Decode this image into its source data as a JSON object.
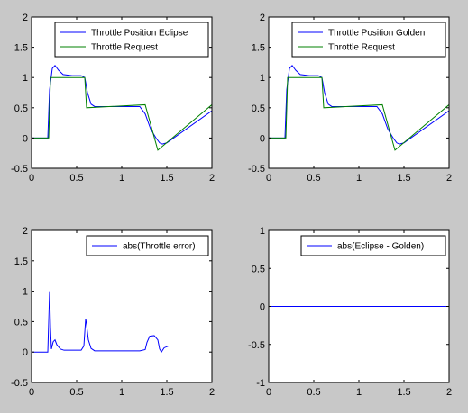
{
  "chart_data": [
    {
      "type": "line",
      "xlim": [
        0,
        2
      ],
      "ylim": [
        -0.5,
        2
      ],
      "xticks": [
        0,
        0.5,
        1,
        1.5,
        2
      ],
      "xtick_labels": [
        "0",
        "0.5",
        "1",
        "1.5",
        "2"
      ],
      "yticks": [
        -0.5,
        0,
        0.5,
        1,
        1.5,
        2
      ],
      "ytick_labels": [
        "-0.5",
        "0",
        "0.5",
        "1",
        "1.5",
        "2"
      ],
      "grid": false,
      "legend_position": "top-right",
      "series": [
        {
          "name": "Throttle Position Eclipse",
          "color": "#0000ff",
          "x": [
            0,
            0.18,
            0.2,
            0.23,
            0.26,
            0.3,
            0.35,
            0.45,
            0.55,
            0.59,
            0.62,
            0.66,
            0.7,
            0.8,
            1.0,
            1.2,
            1.26,
            1.32,
            1.38,
            1.42,
            1.45,
            1.5,
            2.0
          ],
          "y": [
            0,
            0,
            0.8,
            1.15,
            1.2,
            1.12,
            1.05,
            1.03,
            1.03,
            1.0,
            0.75,
            0.56,
            0.52,
            0.52,
            0.52,
            0.52,
            0.4,
            0.15,
            0.0,
            -0.08,
            -0.1,
            -0.08,
            0.45
          ]
        },
        {
          "name": "Throttle Request",
          "color": "#008000",
          "x": [
            0,
            0.19,
            0.21,
            0.59,
            0.61,
            1.26,
            1.4,
            2.0
          ],
          "y": [
            0,
            0,
            1.0,
            1.0,
            0.5,
            0.55,
            -0.2,
            0.55
          ]
        }
      ]
    },
    {
      "type": "line",
      "xlim": [
        0,
        2
      ],
      "ylim": [
        -0.5,
        2
      ],
      "xticks": [
        0,
        0.5,
        1,
        1.5,
        2
      ],
      "xtick_labels": [
        "0",
        "0.5",
        "1",
        "1.5",
        "2"
      ],
      "yticks": [
        -0.5,
        0,
        0.5,
        1,
        1.5,
        2
      ],
      "ytick_labels": [
        "-0.5",
        "0",
        "0.5",
        "1",
        "1.5",
        "2"
      ],
      "grid": false,
      "legend_position": "top-right",
      "series": [
        {
          "name": "Throttle Position Golden",
          "color": "#0000ff",
          "x": [
            0,
            0.18,
            0.2,
            0.23,
            0.26,
            0.3,
            0.35,
            0.45,
            0.55,
            0.59,
            0.62,
            0.66,
            0.7,
            0.8,
            1.0,
            1.2,
            1.26,
            1.32,
            1.38,
            1.42,
            1.45,
            1.5,
            2.0
          ],
          "y": [
            0,
            0,
            0.8,
            1.15,
            1.2,
            1.12,
            1.05,
            1.03,
            1.03,
            1.0,
            0.75,
            0.56,
            0.52,
            0.52,
            0.52,
            0.52,
            0.4,
            0.15,
            0.0,
            -0.08,
            -0.1,
            -0.08,
            0.45
          ]
        },
        {
          "name": "Throttle Request",
          "color": "#008000",
          "x": [
            0,
            0.19,
            0.21,
            0.59,
            0.61,
            1.26,
            1.4,
            2.0
          ],
          "y": [
            0,
            0,
            1.0,
            1.0,
            0.5,
            0.55,
            -0.2,
            0.55
          ]
        }
      ]
    },
    {
      "type": "line",
      "xlim": [
        0,
        2
      ],
      "ylim": [
        -0.5,
        2
      ],
      "xticks": [
        0,
        0.5,
        1,
        1.5,
        2
      ],
      "xtick_labels": [
        "0",
        "0.5",
        "1",
        "1.5",
        "2"
      ],
      "yticks": [
        -0.5,
        0,
        0.5,
        1,
        1.5,
        2
      ],
      "ytick_labels": [
        "-0.5",
        "0",
        "0.5",
        "1",
        "1.5",
        "2"
      ],
      "grid": false,
      "legend_position": "top-right",
      "series": [
        {
          "name": "abs(Throttle error)",
          "color": "#0000ff",
          "x": [
            0,
            0.18,
            0.19,
            0.2,
            0.21,
            0.22,
            0.24,
            0.26,
            0.28,
            0.32,
            0.36,
            0.45,
            0.55,
            0.58,
            0.6,
            0.61,
            0.63,
            0.66,
            0.7,
            0.8,
            1.0,
            1.2,
            1.26,
            1.28,
            1.31,
            1.36,
            1.4,
            1.42,
            1.44,
            1.47,
            1.52,
            1.6,
            2.0
          ],
          "y": [
            0,
            0,
            0.5,
            1.0,
            0.4,
            0.05,
            0.17,
            0.2,
            0.12,
            0.05,
            0.03,
            0.03,
            0.03,
            0.1,
            0.55,
            0.45,
            0.2,
            0.06,
            0.02,
            0.02,
            0.02,
            0.02,
            0.04,
            0.16,
            0.26,
            0.27,
            0.2,
            0.05,
            0.0,
            0.07,
            0.1,
            0.1,
            0.1
          ]
        }
      ]
    },
    {
      "type": "line",
      "xlim": [
        0,
        2
      ],
      "ylim": [
        -1,
        1
      ],
      "xticks": [
        0,
        0.5,
        1,
        1.5,
        2
      ],
      "xtick_labels": [
        "0",
        "0.5",
        "1",
        "1.5",
        "2"
      ],
      "yticks": [
        -1,
        -0.5,
        0,
        0.5,
        1
      ],
      "ytick_labels": [
        "-1",
        "-0.5",
        "0",
        "0.5",
        "1"
      ],
      "grid": false,
      "legend_position": "top-right",
      "series": [
        {
          "name": "abs(Eclipse - Golden)",
          "color": "#0000ff",
          "x": [
            0,
            2
          ],
          "y": [
            0,
            0
          ]
        }
      ]
    }
  ]
}
